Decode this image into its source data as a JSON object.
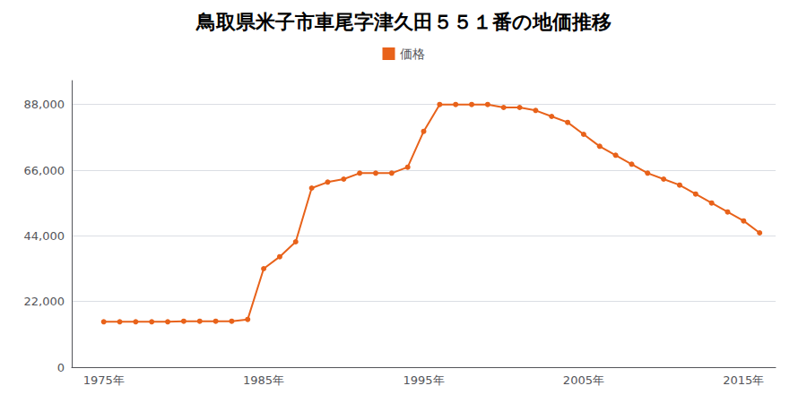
{
  "chart_data": {
    "type": "line",
    "title": "鳥取県米子市車尾字津久田５５１番の地価推移",
    "x": [
      1975,
      1976,
      1977,
      1978,
      1979,
      1980,
      1981,
      1982,
      1983,
      1984,
      1985,
      1986,
      1987,
      1988,
      1989,
      1990,
      1991,
      1992,
      1993,
      1994,
      1995,
      1996,
      1997,
      1998,
      1999,
      2000,
      2001,
      2002,
      2003,
      2004,
      2005,
      2006,
      2007,
      2008,
      2009,
      2010,
      2011,
      2012,
      2013,
      2014,
      2015,
      2016
    ],
    "series": [
      {
        "name": "価格",
        "color": "#E8621A",
        "marker": "circle",
        "values": [
          15200,
          15200,
          15200,
          15200,
          15200,
          15400,
          15400,
          15400,
          15400,
          16000,
          33000,
          37000,
          42000,
          60000,
          62000,
          63000,
          65000,
          65000,
          65000,
          67000,
          79000,
          88000,
          88000,
          88000,
          88000,
          87000,
          87000,
          86000,
          84000,
          82000,
          78000,
          74000,
          71000,
          68000,
          65000,
          63000,
          61000,
          58000,
          55000,
          52000,
          49000,
          45000
        ]
      }
    ],
    "xlim": [
      1973,
      2017
    ],
    "xticks": [
      {
        "value": 1975,
        "label": "1975年"
      },
      {
        "value": 1985,
        "label": "1985年"
      },
      {
        "value": 1995,
        "label": "1995年"
      },
      {
        "value": 2005,
        "label": "2005年"
      },
      {
        "value": 2015,
        "label": "2015年"
      }
    ],
    "ylim": [
      0,
      96000
    ],
    "yticks": [
      0,
      {
        "value": 22000,
        "label": "22,000"
      },
      {
        "value": 44000,
        "label": "44,000"
      },
      {
        "value": 66000,
        "label": "66,000"
      },
      {
        "value": 88000,
        "label": "88,000"
      }
    ],
    "grid": true,
    "legend": "top"
  }
}
